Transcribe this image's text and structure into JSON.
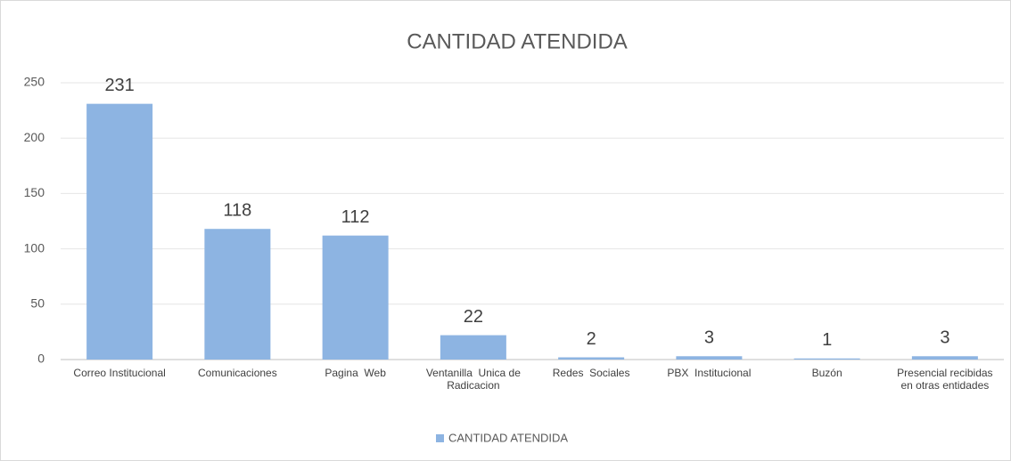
{
  "chart_data": {
    "type": "bar",
    "title": "CANTIDAD ATENDIDA",
    "categories": [
      "Correo Institucional",
      "Comunicaciones",
      "Pagina  Web",
      "Ventanilla  Unica de Radicacion",
      "Redes  Sociales",
      "PBX  Institucional",
      "Buzón",
      "Presencial recibidas  en otras entidades"
    ],
    "series": [
      {
        "name": "CANTIDAD ATENDIDA",
        "color": "#8db4e2",
        "values": [
          231,
          118,
          112,
          22,
          2,
          3,
          1,
          3
        ]
      }
    ],
    "ylim": [
      0,
      250
    ],
    "yticks": [
      0,
      50,
      100,
      150,
      200,
      250
    ],
    "grid": true,
    "legend": "bottom"
  }
}
